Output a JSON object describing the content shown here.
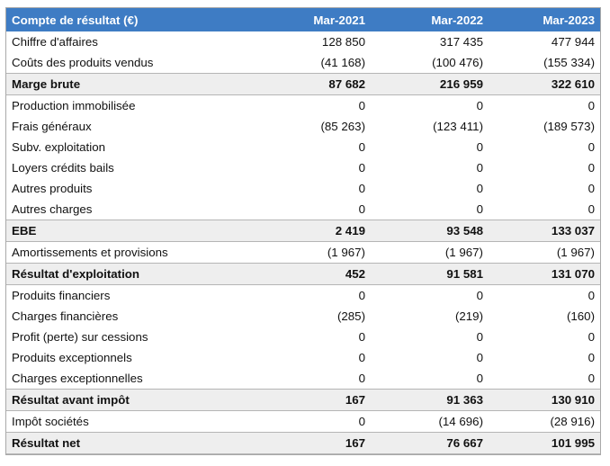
{
  "table": {
    "headers": [
      "Compte de résultat (€)",
      "Mar-2021",
      "Mar-2022",
      "Mar-2023"
    ],
    "rows": [
      {
        "label": "Chiffre d'affaires",
        "values": [
          "128 850",
          "317 435",
          "477 944"
        ],
        "bold": false
      },
      {
        "label": "Coûts des produits vendus",
        "values": [
          "(41 168)",
          "(100 476)",
          "(155 334)"
        ],
        "bold": false
      },
      {
        "label": "Marge brute",
        "values": [
          "87 682",
          "216 959",
          "322 610"
        ],
        "bold": true
      },
      {
        "label": "Production immobilisée",
        "values": [
          "0",
          "0",
          "0"
        ],
        "bold": false
      },
      {
        "label": "Frais généraux",
        "values": [
          "(85 263)",
          "(123 411)",
          "(189 573)"
        ],
        "bold": false
      },
      {
        "label": "Subv. exploitation",
        "values": [
          "0",
          "0",
          "0"
        ],
        "bold": false
      },
      {
        "label": "Loyers crédits bails",
        "values": [
          "0",
          "0",
          "0"
        ],
        "bold": false
      },
      {
        "label": "Autres produits",
        "values": [
          "0",
          "0",
          "0"
        ],
        "bold": false
      },
      {
        "label": "Autres charges",
        "values": [
          "0",
          "0",
          "0"
        ],
        "bold": false
      },
      {
        "label": "EBE",
        "values": [
          "2 419",
          "93 548",
          "133 037"
        ],
        "bold": true
      },
      {
        "label": "Amortissements et provisions",
        "values": [
          "(1 967)",
          "(1 967)",
          "(1 967)"
        ],
        "bold": false
      },
      {
        "label": "Résultat d'exploitation",
        "values": [
          "452",
          "91 581",
          "131 070"
        ],
        "bold": true
      },
      {
        "label": "Produits financiers",
        "values": [
          "0",
          "0",
          "0"
        ],
        "bold": false
      },
      {
        "label": "Charges financières",
        "values": [
          "(285)",
          "(219)",
          "(160)"
        ],
        "bold": false
      },
      {
        "label": "Profit (perte) sur cessions",
        "values": [
          "0",
          "0",
          "0"
        ],
        "bold": false
      },
      {
        "label": "Produits exceptionnels",
        "values": [
          "0",
          "0",
          "0"
        ],
        "bold": false
      },
      {
        "label": "Charges exceptionnelles",
        "values": [
          "0",
          "0",
          "0"
        ],
        "bold": false
      },
      {
        "label": "Résultat avant impôt",
        "values": [
          "167",
          "91 363",
          "130 910"
        ],
        "bold": true
      },
      {
        "label": "Impôt sociétés",
        "values": [
          "0",
          "(14 696)",
          "(28 916)"
        ],
        "bold": false
      },
      {
        "label": "Résultat net",
        "values": [
          "167",
          "76 667",
          "101 995"
        ],
        "bold": true
      }
    ]
  },
  "colors": {
    "header_bg": "#3e7cc4",
    "header_text": "#ffffff",
    "subtotal_bg": "#eeeeee"
  }
}
